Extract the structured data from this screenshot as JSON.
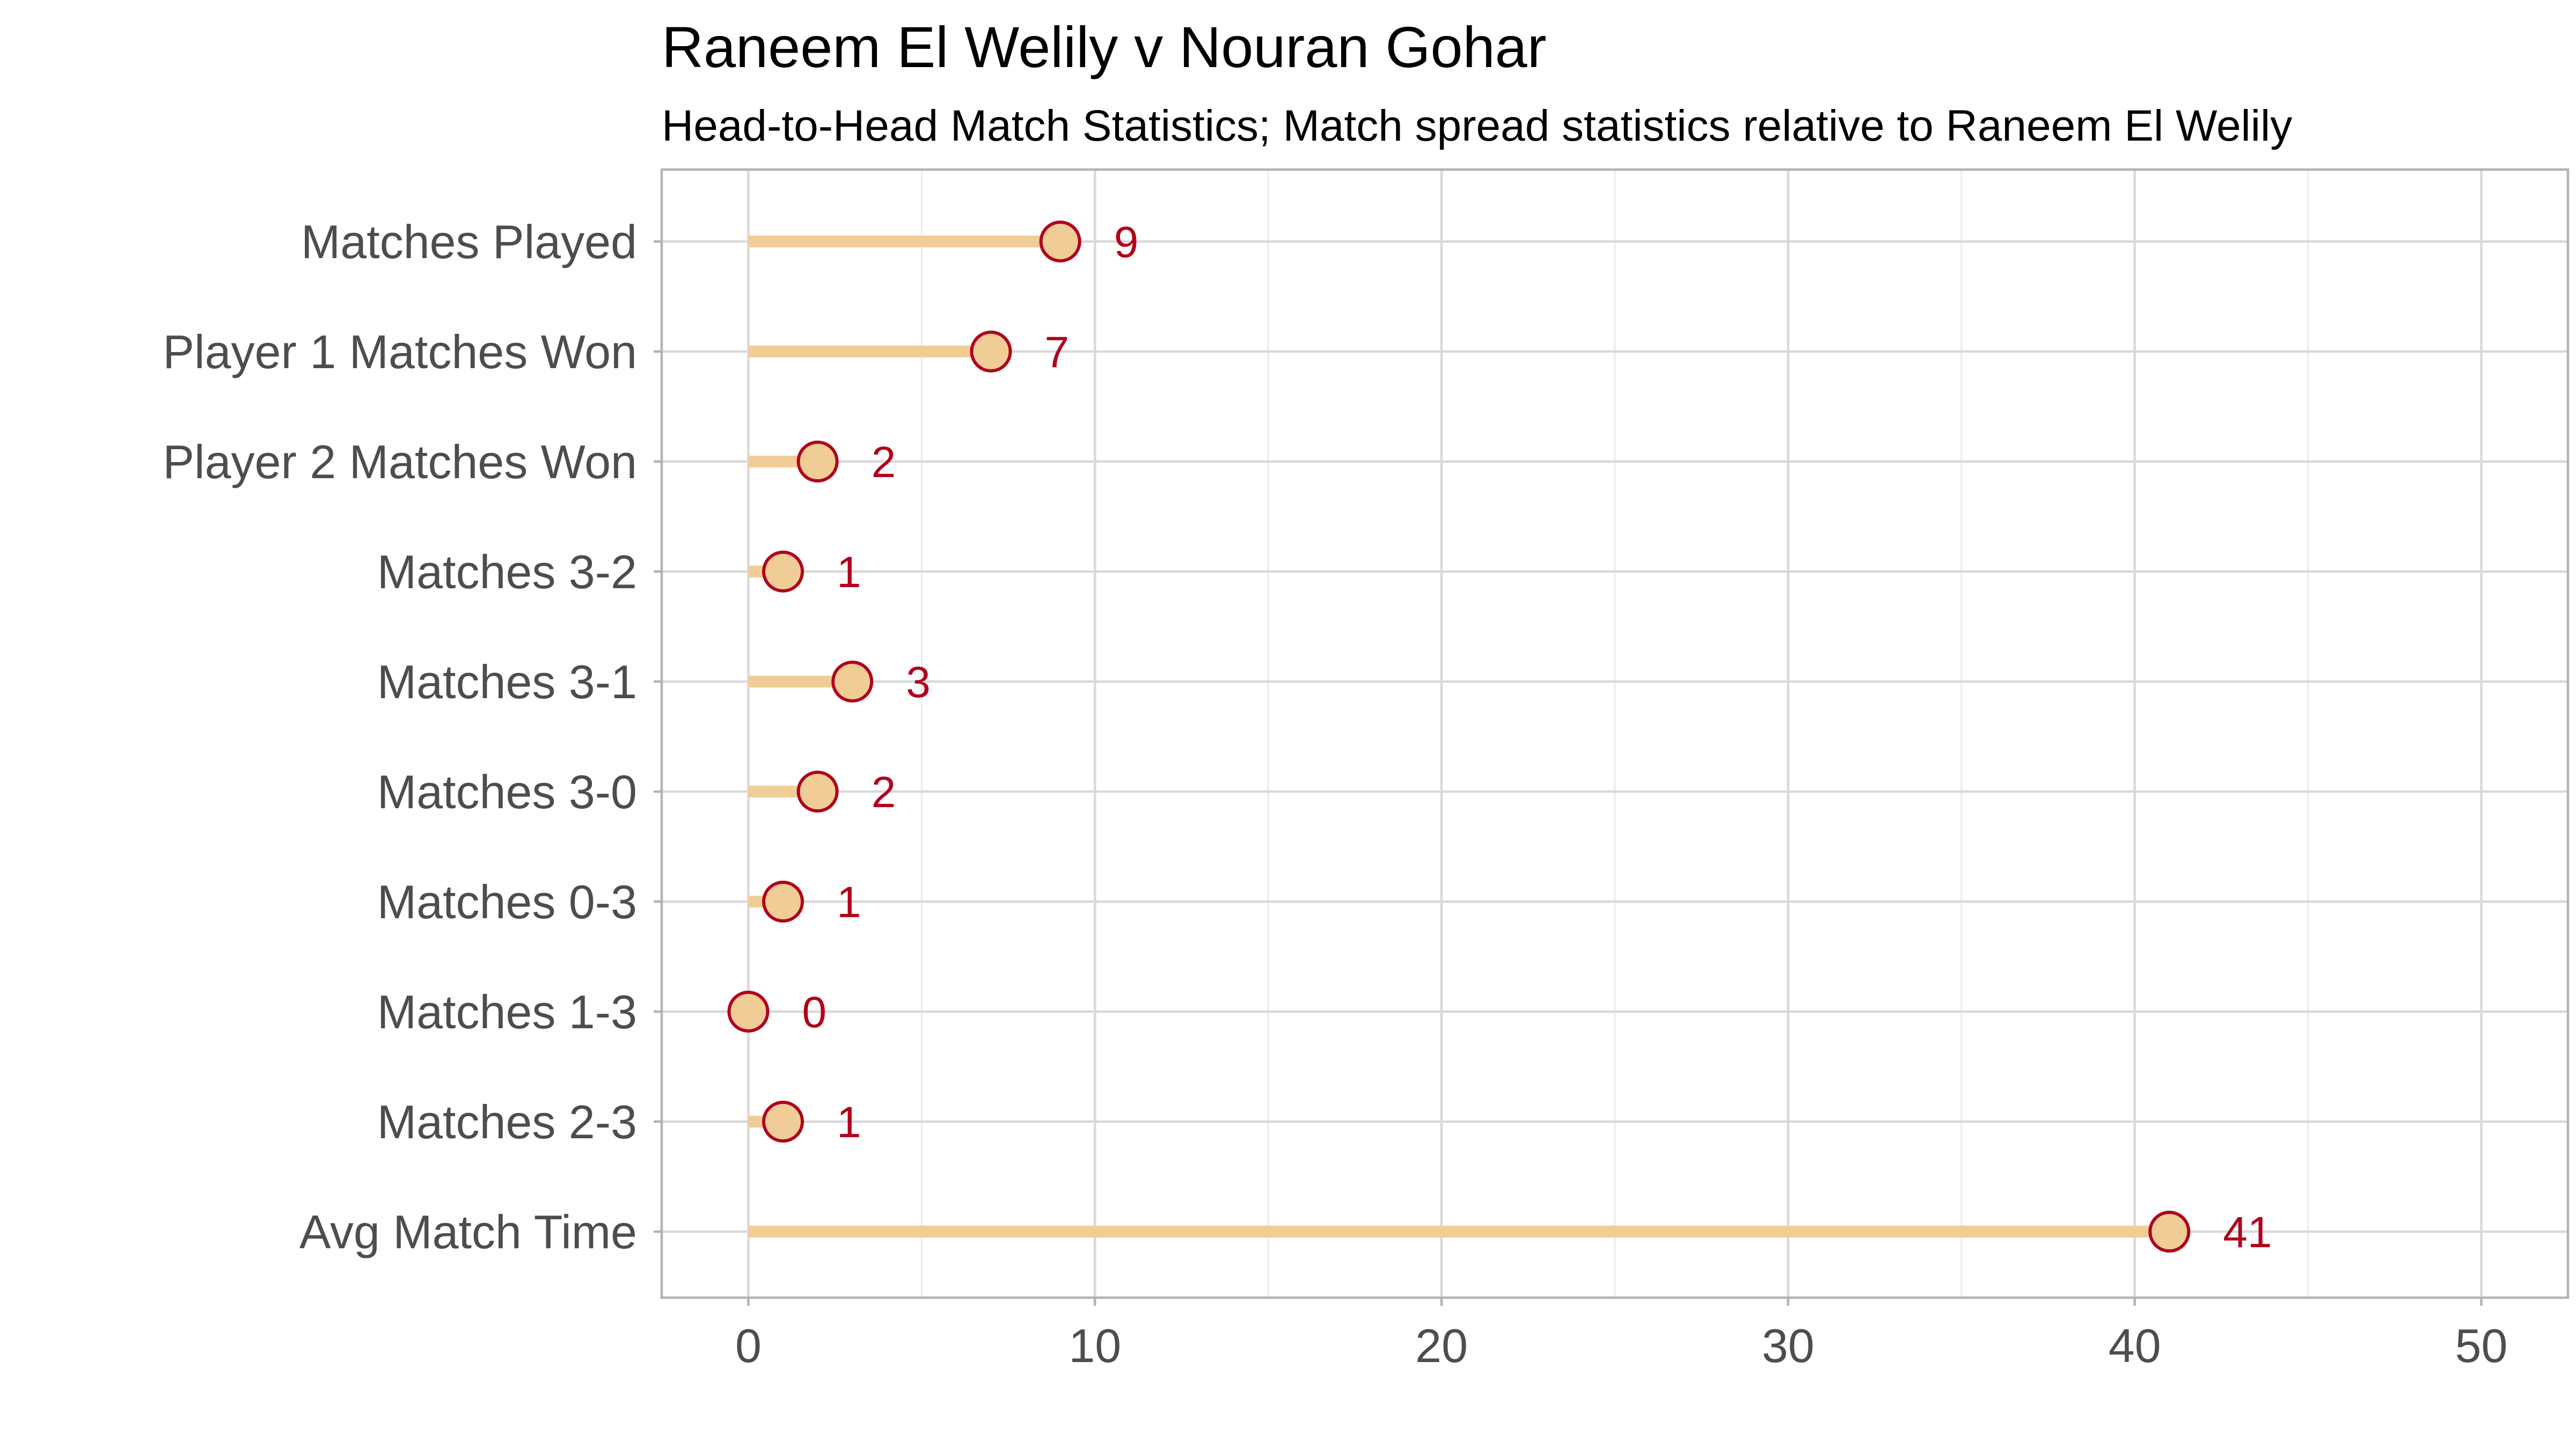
{
  "chart_data": {
    "type": "lollipop",
    "title": "Raneem El Welily v Nouran Gohar",
    "subtitle": "Head-to-Head Match Statistics; Match spread statistics relative to Raneem El Welily",
    "xlabel": "",
    "ylabel": "",
    "xlim": [
      -2.5,
      52.5
    ],
    "x_ticks": [
      0,
      10,
      20,
      30,
      40,
      50
    ],
    "x_tick_labels": [
      "0",
      "10",
      "20",
      "30",
      "40",
      "50"
    ],
    "grid": true,
    "categories": [
      "Matches Played",
      "Player 1 Matches Won",
      "Player 2 Matches Won",
      "Matches 3-2",
      "Matches 3-1",
      "Matches 3-0",
      "Matches 0-3",
      "Matches 1-3",
      "Matches 2-3",
      "Avg Match Time"
    ],
    "values": [
      9,
      7,
      2,
      1,
      3,
      2,
      1,
      0,
      1,
      41
    ],
    "value_labels": [
      "9",
      "7",
      "2",
      "1",
      "3",
      "2",
      "1",
      "0",
      "1",
      "41"
    ],
    "colors": {
      "stem": "#f0cd96",
      "point_fill": "#f0cd96",
      "point_stroke": "#b2001c",
      "label": "#b2001c",
      "grid_major": "#d9d9d9",
      "grid_minor": "#ebebeb",
      "panel_border": "#b3b3b3"
    }
  }
}
